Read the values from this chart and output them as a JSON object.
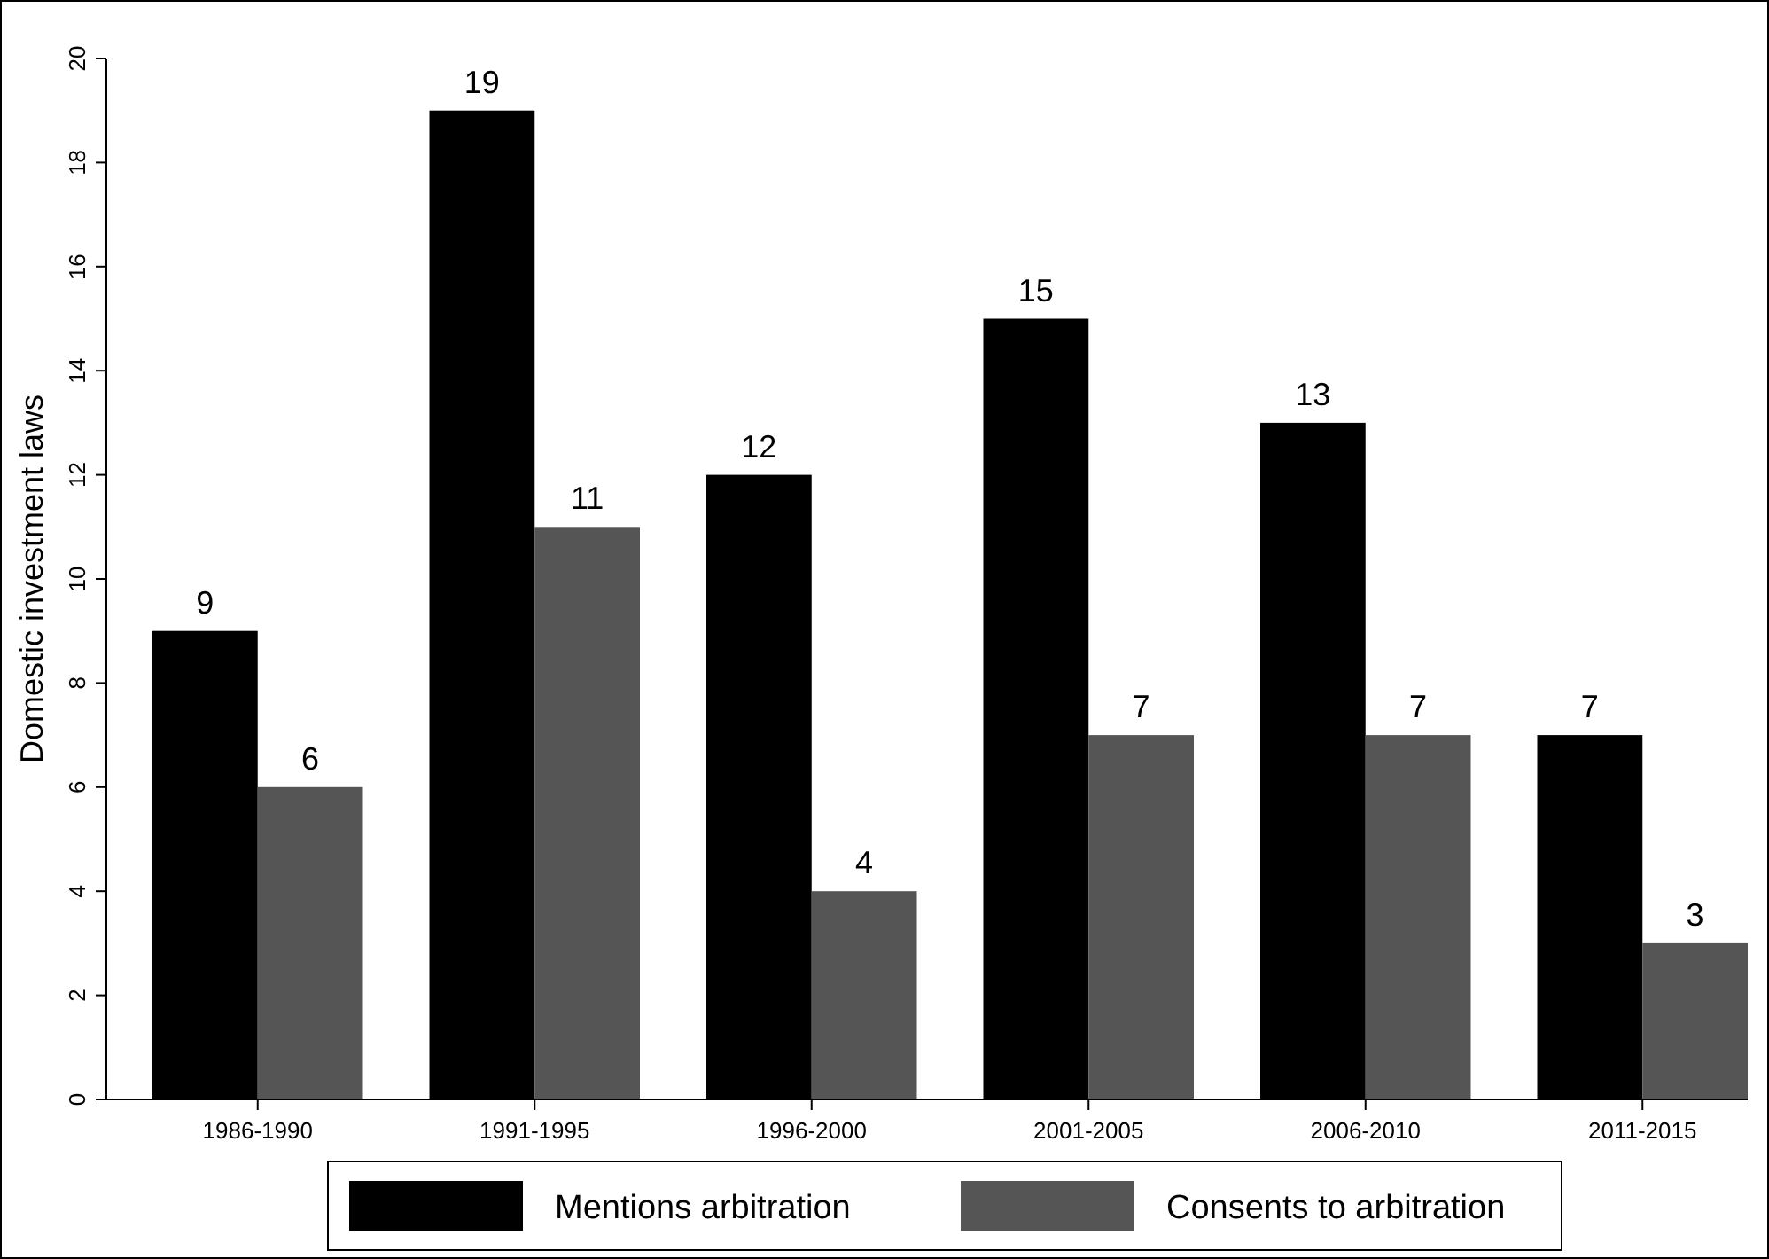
{
  "chart_data": {
    "type": "bar",
    "ylabel": "Domestic investment laws",
    "categories": [
      "1986-1990",
      "1991-1995",
      "1996-2000",
      "2001-2005",
      "2006-2010",
      "2011-2015"
    ],
    "series": [
      {
        "name": "Mentions arbitration",
        "color": "#000000",
        "values": [
          9,
          19,
          12,
          15,
          13,
          7
        ]
      },
      {
        "name": "Consents to arbitration",
        "color": "#555555",
        "values": [
          6,
          11,
          4,
          7,
          7,
          3
        ]
      }
    ],
    "ylim": [
      0,
      20
    ],
    "yticks": [
      0,
      2,
      4,
      6,
      8,
      10,
      12,
      14,
      16,
      18,
      20
    ],
    "grid": false,
    "legend": "bottom",
    "data_labels": true
  }
}
